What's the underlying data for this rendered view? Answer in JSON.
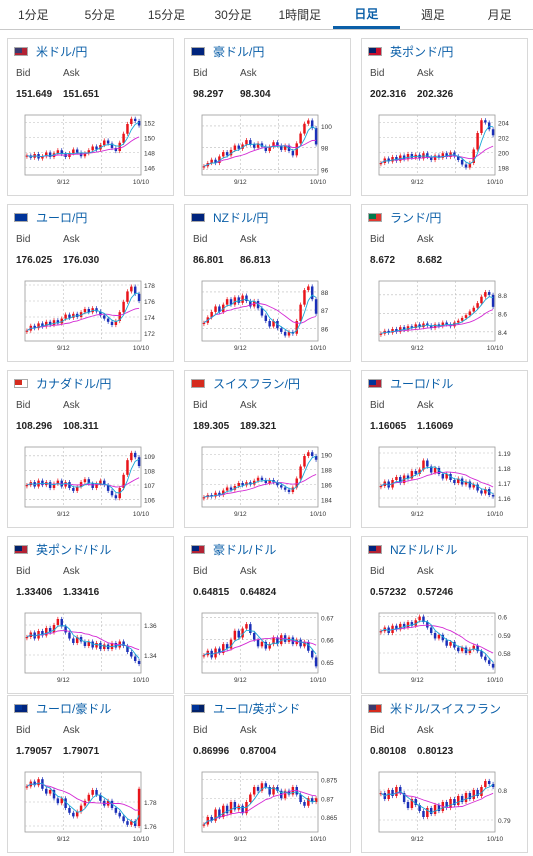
{
  "tabs": [
    {
      "label": "1分足",
      "active": false
    },
    {
      "label": "5分足",
      "active": false
    },
    {
      "label": "15分足",
      "active": false
    },
    {
      "label": "30分足",
      "active": false
    },
    {
      "label": "1時間足",
      "active": false
    },
    {
      "label": "日足",
      "active": true
    },
    {
      "label": "週足",
      "active": false
    },
    {
      "label": "月足",
      "active": false
    }
  ],
  "labels": {
    "bid": "Bid",
    "ask": "Ask"
  },
  "colors": {
    "accent": "#0b5fa8",
    "up": "#e8141a",
    "down": "#1a2fb8",
    "ma_short": "#1aa7d6",
    "ma_long": "#d42ad4"
  },
  "cards": [
    {
      "pair": "米ドル/円",
      "flag": [
        "#3c3b6e",
        "#b22234"
      ],
      "bid": "151.649",
      "ask": "151.651",
      "chart_data": {
        "type": "candlestick",
        "x_ticks": [
          "9/12",
          "10/10"
        ],
        "y_ticks": [
          146,
          148,
          150,
          152
        ],
        "ylim": [
          145,
          153
        ],
        "closes": [
          147.6,
          147.3,
          147.8,
          147.2,
          147.5,
          148.0,
          147.4,
          147.9,
          148.3,
          147.8,
          147.4,
          147.9,
          148.4,
          148.0,
          147.5,
          147.9,
          148.3,
          148.8,
          148.4,
          149.0,
          149.6,
          149.2,
          148.6,
          148.2,
          149.3,
          150.5,
          151.8,
          152.5,
          152.2,
          151.6
        ]
      }
    },
    {
      "pair": "豪ドル/円",
      "flag": [
        "#00247d",
        "#00247d"
      ],
      "bid": "98.297",
      "ask": "98.304",
      "chart_data": {
        "type": "candlestick",
        "x_ticks": [
          "9/12",
          "10/10"
        ],
        "y_ticks": [
          96,
          98,
          100
        ],
        "ylim": [
          95.5,
          101
        ],
        "closes": [
          96.3,
          96.6,
          96.9,
          96.6,
          97.2,
          97.6,
          97.3,
          97.8,
          98.2,
          97.9,
          98.3,
          98.7,
          98.3,
          98.0,
          98.4,
          98.1,
          97.7,
          98.1,
          98.5,
          98.2,
          97.8,
          98.2,
          97.7,
          97.3,
          98.4,
          99.3,
          100.2,
          100.5,
          99.8,
          98.3
        ]
      }
    },
    {
      "pair": "英ポンド/円",
      "flag": [
        "#012169",
        "#c8102e"
      ],
      "bid": "202.316",
      "ask": "202.326",
      "chart_data": {
        "type": "candlestick",
        "x_ticks": [
          "9/12",
          "10/10"
        ],
        "y_ticks": [
          198,
          200,
          202,
          204
        ],
        "ylim": [
          197,
          205
        ],
        "closes": [
          198.6,
          199.2,
          198.8,
          199.4,
          198.9,
          199.6,
          199.1,
          199.8,
          199.3,
          199.7,
          199.2,
          199.9,
          199.4,
          199.0,
          199.6,
          199.3,
          199.9,
          199.4,
          200.0,
          199.5,
          199.0,
          198.4,
          198.0,
          198.6,
          200.4,
          202.6,
          204.3,
          204.0,
          203.1,
          202.3
        ]
      }
    },
    {
      "pair": "ユーロ/円",
      "flag": [
        "#003399",
        "#003399"
      ],
      "bid": "176.025",
      "ask": "176.030",
      "chart_data": {
        "type": "candlestick",
        "x_ticks": [
          "9/12",
          "10/10"
        ],
        "y_ticks": [
          172,
          174,
          176,
          178
        ],
        "ylim": [
          171,
          178.5
        ],
        "closes": [
          172.3,
          172.9,
          172.6,
          173.2,
          172.8,
          173.4,
          173.0,
          173.6,
          173.2,
          173.8,
          174.3,
          173.9,
          174.4,
          174.0,
          174.6,
          175.0,
          174.6,
          175.1,
          174.7,
          174.2,
          173.8,
          173.4,
          173.0,
          173.5,
          174.6,
          175.9,
          177.2,
          177.8,
          176.9,
          176.0
        ]
      }
    },
    {
      "pair": "NZドル/円",
      "flag": [
        "#00247d",
        "#00247d"
      ],
      "bid": "86.801",
      "ask": "86.813",
      "chart_data": {
        "type": "candlestick",
        "x_ticks": [
          "9/12",
          "10/10"
        ],
        "y_ticks": [
          86,
          87,
          88
        ],
        "ylim": [
          85.3,
          88.6
        ],
        "closes": [
          86.3,
          86.6,
          86.9,
          87.2,
          86.9,
          87.3,
          87.6,
          87.3,
          87.7,
          87.4,
          87.8,
          87.5,
          87.2,
          87.5,
          87.1,
          86.7,
          86.4,
          86.1,
          86.4,
          86.0,
          85.8,
          85.6,
          85.8,
          85.7,
          86.4,
          87.3,
          88.1,
          88.3,
          87.6,
          86.8
        ]
      }
    },
    {
      "pair": "ランド/円",
      "flag": [
        "#007a4d",
        "#de3831"
      ],
      "bid": "8.672",
      "ask": "8.682",
      "chart_data": {
        "type": "candlestick",
        "x_ticks": [
          "9/12",
          "10/10"
        ],
        "y_ticks": [
          8.4,
          8.6,
          8.8
        ],
        "ylim": [
          8.3,
          8.95
        ],
        "closes": [
          8.38,
          8.41,
          8.39,
          8.43,
          8.4,
          8.45,
          8.42,
          8.46,
          8.44,
          8.48,
          8.45,
          8.49,
          8.47,
          8.44,
          8.48,
          8.46,
          8.5,
          8.48,
          8.46,
          8.5,
          8.52,
          8.55,
          8.58,
          8.62,
          8.66,
          8.71,
          8.78,
          8.83,
          8.8,
          8.67
        ]
      }
    },
    {
      "pair": "カナダドル/円",
      "flag": [
        "#d52b1e",
        "#ffffff"
      ],
      "bid": "108.296",
      "ask": "108.311",
      "chart_data": {
        "type": "candlestick",
        "x_ticks": [
          "9/12",
          "10/10"
        ],
        "y_ticks": [
          106,
          107,
          108,
          109
        ],
        "ylim": [
          105.5,
          109.6
        ],
        "closes": [
          107.0,
          107.2,
          106.9,
          107.3,
          107.0,
          107.2,
          106.8,
          107.1,
          107.3,
          106.9,
          107.2,
          106.8,
          106.6,
          106.9,
          107.2,
          107.4,
          107.1,
          106.8,
          107.1,
          107.3,
          107.0,
          106.6,
          106.3,
          106.1,
          106.8,
          107.7,
          108.7,
          109.2,
          108.9,
          108.3
        ]
      }
    },
    {
      "pair": "スイスフラン/円",
      "flag": [
        "#d52b1e",
        "#d52b1e"
      ],
      "bid": "189.305",
      "ask": "189.321",
      "chart_data": {
        "type": "candlestick",
        "x_ticks": [
          "9/12",
          "10/10"
        ],
        "y_ticks": [
          184,
          186,
          188,
          190
        ],
        "ylim": [
          183,
          191
        ],
        "closes": [
          184.3,
          184.6,
          184.4,
          184.9,
          184.6,
          185.2,
          185.6,
          185.3,
          185.8,
          186.2,
          185.9,
          186.3,
          186.0,
          186.5,
          186.9,
          186.6,
          186.2,
          186.6,
          186.3,
          185.9,
          185.6,
          185.3,
          185.0,
          185.6,
          186.8,
          188.4,
          189.8,
          190.3,
          189.8,
          189.3
        ]
      }
    },
    {
      "pair": "ユーロ/ドル",
      "flag": [
        "#003399",
        "#b22234"
      ],
      "bid": "1.16065",
      "ask": "1.16069",
      "chart_data": {
        "type": "candlestick",
        "x_ticks": [
          "9/12",
          "10/10"
        ],
        "y_ticks": [
          1.16,
          1.17,
          1.18,
          1.19
        ],
        "ylim": [
          1.154,
          1.194
        ],
        "closes": [
          1.168,
          1.171,
          1.167,
          1.172,
          1.174,
          1.17,
          1.175,
          1.173,
          1.178,
          1.176,
          1.179,
          1.185,
          1.181,
          1.177,
          1.18,
          1.176,
          1.173,
          1.176,
          1.172,
          1.17,
          1.173,
          1.169,
          1.171,
          1.167,
          1.169,
          1.165,
          1.163,
          1.166,
          1.162,
          1.161
        ]
      }
    },
    {
      "pair": "英ポンド/ドル",
      "flag": [
        "#012169",
        "#b22234"
      ],
      "bid": "1.33406",
      "ask": "1.33416",
      "chart_data": {
        "type": "candlestick",
        "x_ticks": [
          "9/12",
          "10/10"
        ],
        "y_ticks": [
          1.34,
          1.36
        ],
        "ylim": [
          1.328,
          1.368
        ],
        "closes": [
          1.352,
          1.355,
          1.351,
          1.356,
          1.353,
          1.358,
          1.355,
          1.36,
          1.364,
          1.359,
          1.355,
          1.351,
          1.348,
          1.352,
          1.349,
          1.346,
          1.349,
          1.345,
          1.348,
          1.344,
          1.347,
          1.344,
          1.348,
          1.345,
          1.349,
          1.346,
          1.342,
          1.339,
          1.336,
          1.334
        ]
      }
    },
    {
      "pair": "豪ドル/ドル",
      "flag": [
        "#00247d",
        "#b22234"
      ],
      "bid": "0.64815",
      "ask": "0.64824",
      "chart_data": {
        "type": "candlestick",
        "x_ticks": [
          "9/12",
          "10/10"
        ],
        "y_ticks": [
          0.65,
          0.66,
          0.67
        ],
        "ylim": [
          0.645,
          0.672
        ],
        "closes": [
          0.653,
          0.655,
          0.652,
          0.656,
          0.654,
          0.658,
          0.656,
          0.66,
          0.664,
          0.661,
          0.665,
          0.667,
          0.663,
          0.66,
          0.657,
          0.659,
          0.656,
          0.658,
          0.661,
          0.658,
          0.662,
          0.659,
          0.661,
          0.658,
          0.66,
          0.657,
          0.659,
          0.655,
          0.652,
          0.648
        ]
      }
    },
    {
      "pair": "NZドル/ドル",
      "flag": [
        "#00247d",
        "#b22234"
      ],
      "bid": "0.57232",
      "ask": "0.57246",
      "chart_data": {
        "type": "candlestick",
        "x_ticks": [
          "9/12",
          "10/10"
        ],
        "y_ticks": [
          0.58,
          0.59,
          0.6
        ],
        "ylim": [
          0.569,
          0.602
        ],
        "closes": [
          0.592,
          0.594,
          0.591,
          0.595,
          0.593,
          0.596,
          0.594,
          0.597,
          0.595,
          0.598,
          0.6,
          0.597,
          0.594,
          0.591,
          0.588,
          0.59,
          0.587,
          0.584,
          0.586,
          0.583,
          0.581,
          0.583,
          0.58,
          0.582,
          0.584,
          0.581,
          0.578,
          0.576,
          0.574,
          0.572
        ]
      }
    },
    {
      "pair": "ユーロ/豪ドル",
      "flag": [
        "#003399",
        "#00247d"
      ],
      "bid": "1.79057",
      "ask": "1.79071",
      "chart_data": {
        "type": "candlestick",
        "x_ticks": [
          "9/12",
          "10/10"
        ],
        "y_ticks": [
          1.76,
          1.78
        ],
        "ylim": [
          1.755,
          1.805
        ],
        "closes": [
          1.793,
          1.797,
          1.794,
          1.799,
          1.791,
          1.787,
          1.79,
          1.783,
          1.779,
          1.783,
          1.775,
          1.771,
          1.768,
          1.772,
          1.777,
          1.781,
          1.786,
          1.79,
          1.786,
          1.781,
          1.777,
          1.781,
          1.775,
          1.771,
          1.768,
          1.764,
          1.761,
          1.764,
          1.76,
          1.791
        ]
      }
    },
    {
      "pair": "ユーロ/英ポンド",
      "flag": [
        "#003399",
        "#012169"
      ],
      "bid": "0.86996",
      "ask": "0.87004",
      "chart_data": {
        "type": "candlestick",
        "x_ticks": [
          "9/12",
          "10/10"
        ],
        "y_ticks": [
          0.865,
          0.87,
          0.875
        ],
        "ylim": [
          0.861,
          0.877
        ],
        "closes": [
          0.863,
          0.865,
          0.864,
          0.867,
          0.865,
          0.868,
          0.866,
          0.869,
          0.867,
          0.868,
          0.866,
          0.869,
          0.871,
          0.873,
          0.872,
          0.874,
          0.873,
          0.871,
          0.873,
          0.872,
          0.87,
          0.872,
          0.871,
          0.873,
          0.871,
          0.869,
          0.868,
          0.87,
          0.869,
          0.87
        ]
      }
    },
    {
      "pair": "米ドル/スイスフラン",
      "flag": [
        "#3c3b6e",
        "#d52b1e"
      ],
      "bid": "0.80108",
      "ask": "0.80123",
      "chart_data": {
        "type": "candlestick",
        "x_ticks": [
          "9/12",
          "10/10"
        ],
        "y_ticks": [
          0.79,
          0.8
        ],
        "ylim": [
          0.786,
          0.806
        ],
        "closes": [
          0.799,
          0.797,
          0.8,
          0.798,
          0.801,
          0.799,
          0.796,
          0.794,
          0.797,
          0.795,
          0.793,
          0.791,
          0.794,
          0.792,
          0.795,
          0.793,
          0.796,
          0.794,
          0.797,
          0.795,
          0.798,
          0.796,
          0.799,
          0.797,
          0.8,
          0.798,
          0.801,
          0.803,
          0.802,
          0.801
        ]
      }
    }
  ]
}
